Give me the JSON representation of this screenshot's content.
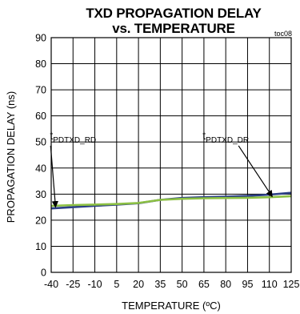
{
  "chart_data": {
    "type": "line",
    "title": "TXD PROPAGATION DELAY",
    "subtitle": "vs. TEMPERATURE",
    "figure_id": "toc08",
    "xlabel": "TEMPERATURE (ºC)",
    "ylabel": "PROPAGATION DELAY (ns)",
    "xlim": [
      -40,
      125
    ],
    "ylim": [
      0,
      90
    ],
    "xticks": [
      "-40",
      "-25",
      "-10",
      "5",
      "20",
      "35",
      "50",
      "65",
      "80",
      "95",
      "110",
      "125"
    ],
    "yticks": [
      "0",
      "10",
      "20",
      "30",
      "40",
      "50",
      "60",
      "70",
      "80",
      "90"
    ],
    "grid": true,
    "series": [
      {
        "name": "tPDTXD_RD",
        "label_main": "t",
        "label_sub": "PDTXD_RD",
        "color": "#2b3f86",
        "x": [
          -40,
          -25,
          -10,
          5,
          20,
          35,
          50,
          65,
          80,
          95,
          110,
          125
        ],
        "y": [
          24.5,
          25.0,
          25.5,
          26.0,
          26.5,
          27.8,
          28.5,
          28.8,
          29.0,
          29.3,
          29.8,
          30.5
        ]
      },
      {
        "name": "tPDTXD_DR",
        "label_main": "t",
        "label_sub": "PDTXD_DR",
        "color": "#8cc043",
        "x": [
          -40,
          -25,
          -10,
          5,
          20,
          35,
          50,
          65,
          80,
          95,
          110,
          125
        ],
        "y": [
          25.5,
          25.8,
          26.0,
          26.2,
          26.6,
          27.8,
          28.2,
          28.4,
          28.5,
          28.6,
          28.8,
          29.2
        ]
      }
    ],
    "annotations": [
      {
        "series": 0,
        "text_x": -25,
        "text_y": 51,
        "arrow_to": [
          -37,
          25
        ]
      },
      {
        "series": 1,
        "text_x": 80,
        "text_y": 51,
        "arrow_to": [
          112,
          29
        ]
      }
    ]
  }
}
